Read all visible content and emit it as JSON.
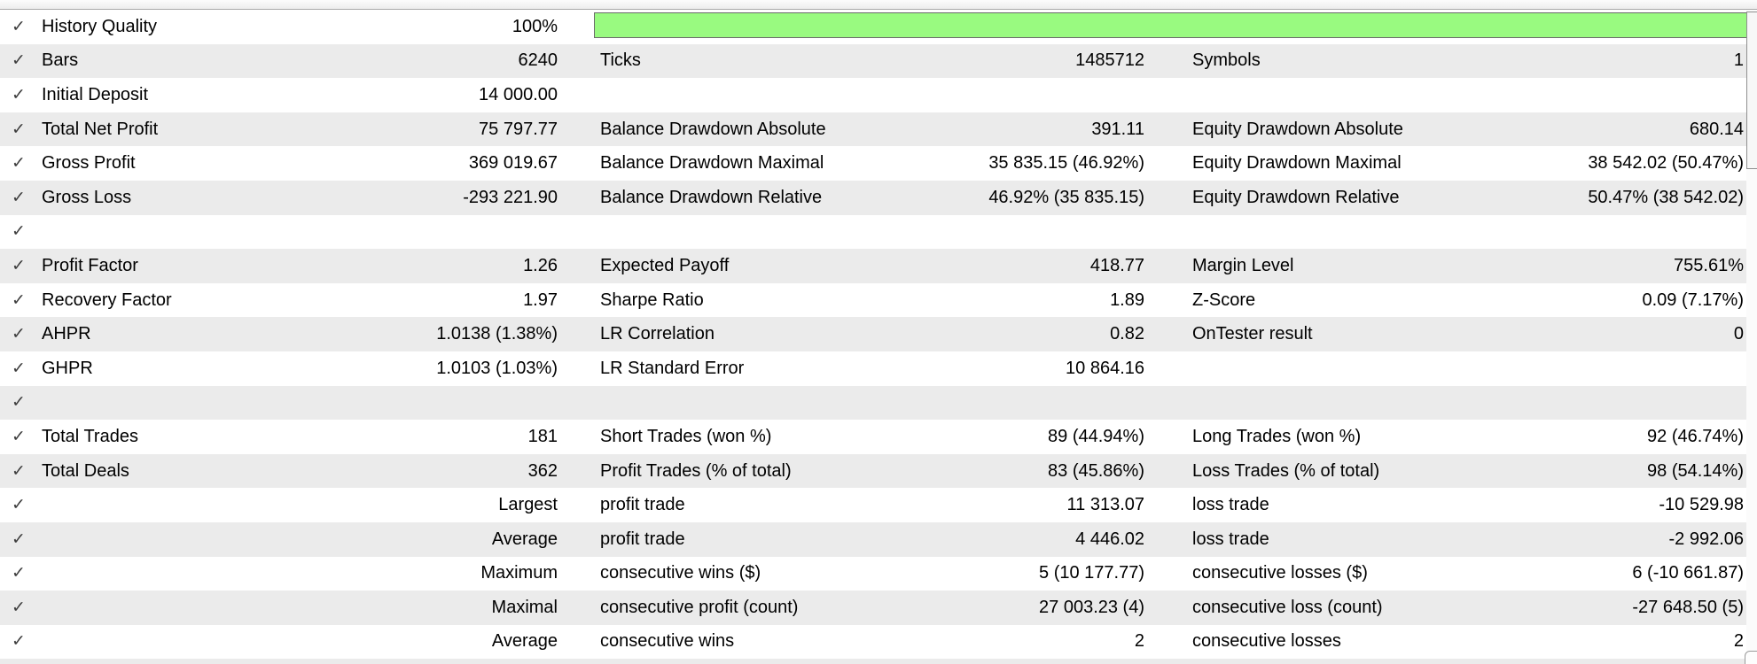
{
  "colors": {
    "history_quality_bar": "#99fa80",
    "row_alt_background": "#ebebeb"
  },
  "table": {
    "check_glyph": "✓",
    "rows": [
      {
        "key": "history-quality",
        "check": true,
        "shade": "white",
        "c1l": "History Quality",
        "c1v": "100%",
        "bar": true
      },
      {
        "key": "bars",
        "check": true,
        "shade": "gray",
        "c1l": "Bars",
        "c1v": "6240",
        "c2l": "Ticks",
        "c2v": "1485712",
        "c3l": "Symbols",
        "c3v": "1"
      },
      {
        "key": "initial-deposit",
        "check": true,
        "shade": "white",
        "c1l": "Initial Deposit",
        "c1v": "14 000.00"
      },
      {
        "key": "total-net-profit",
        "check": true,
        "shade": "gray",
        "c1l": "Total Net Profit",
        "c1v": "75 797.77",
        "c2l": "Balance Drawdown Absolute",
        "c2v": "391.11",
        "c3l": "Equity Drawdown Absolute",
        "c3v": "680.14"
      },
      {
        "key": "gross-profit",
        "check": true,
        "shade": "white",
        "c1l": "Gross Profit",
        "c1v": "369 019.67",
        "c2l": "Balance Drawdown Maximal",
        "c2v": "35 835.15 (46.92%)",
        "c3l": "Equity Drawdown Maximal",
        "c3v": "38 542.02 (50.47%)"
      },
      {
        "key": "gross-loss",
        "check": true,
        "shade": "gray",
        "c1l": "Gross Loss",
        "c1v": "-293 221.90",
        "c2l": "Balance Drawdown Relative",
        "c2v": "46.92% (35 835.15)",
        "c3l": "Equity Drawdown Relative",
        "c3v": "50.47% (38 542.02)"
      },
      {
        "key": "spacer-1",
        "check": true,
        "shade": "white"
      },
      {
        "key": "profit-factor",
        "check": true,
        "shade": "gray",
        "c1l": "Profit Factor",
        "c1v": "1.26",
        "c2l": "Expected Payoff",
        "c2v": "418.77",
        "c3l": "Margin Level",
        "c3v": "755.61%"
      },
      {
        "key": "recovery-factor",
        "check": true,
        "shade": "white",
        "c1l": "Recovery Factor",
        "c1v": "1.97",
        "c2l": "Sharpe Ratio",
        "c2v": "1.89",
        "c3l": "Z-Score",
        "c3v": "0.09 (7.17%)"
      },
      {
        "key": "ahpr",
        "check": true,
        "shade": "gray",
        "c1l": "AHPR",
        "c1v": "1.0138 (1.38%)",
        "c2l": "LR Correlation",
        "c2v": "0.82",
        "c3l": "OnTester result",
        "c3v": "0"
      },
      {
        "key": "ghpr",
        "check": true,
        "shade": "white",
        "c1l": "GHPR",
        "c1v": "1.0103 (1.03%)",
        "c2l": "LR Standard Error",
        "c2v": "10 864.16"
      },
      {
        "key": "spacer-2",
        "check": true,
        "shade": "gray"
      },
      {
        "key": "total-trades",
        "check": true,
        "shade": "white",
        "c1l": "Total Trades",
        "c1v": "181",
        "c2l": "Short Trades (won %)",
        "c2v": "89 (44.94%)",
        "c3l": "Long Trades (won %)",
        "c3v": "92 (46.74%)"
      },
      {
        "key": "total-deals",
        "check": true,
        "shade": "gray",
        "c1l": "Total Deals",
        "c1v": "362",
        "c2l": "Profit Trades (% of total)",
        "c2v": "83 (45.86%)",
        "c3l": "Loss Trades (% of total)",
        "c3v": "98 (54.14%)"
      },
      {
        "key": "largest",
        "check": true,
        "shade": "white",
        "c1v": "Largest",
        "c2l": "profit trade",
        "c2v": "11 313.07",
        "c3l": "loss trade",
        "c3v": "-10 529.98"
      },
      {
        "key": "average-trade",
        "check": true,
        "shade": "gray",
        "c1v": "Average",
        "c2l": "profit trade",
        "c2v": "4 446.02",
        "c3l": "loss trade",
        "c3v": "-2 992.06"
      },
      {
        "key": "maximum-consecutive",
        "check": true,
        "shade": "white",
        "c1v": "Maximum",
        "c2l": "consecutive wins ($)",
        "c2v": "5 (10 177.77)",
        "c3l": "consecutive losses ($)",
        "c3v": "6 (-10 661.87)"
      },
      {
        "key": "maximal-consecutive",
        "check": true,
        "shade": "gray",
        "c1v": "Maximal",
        "c2l": "consecutive profit (count)",
        "c2v": "27 003.23 (4)",
        "c3l": "consecutive loss (count)",
        "c3v": "-27 648.50 (5)"
      },
      {
        "key": "average-consecutive",
        "check": true,
        "shade": "white",
        "c1v": "Average",
        "c2l": "consecutive wins",
        "c2v": "2",
        "c3l": "consecutive losses",
        "c3v": "2"
      }
    ]
  }
}
